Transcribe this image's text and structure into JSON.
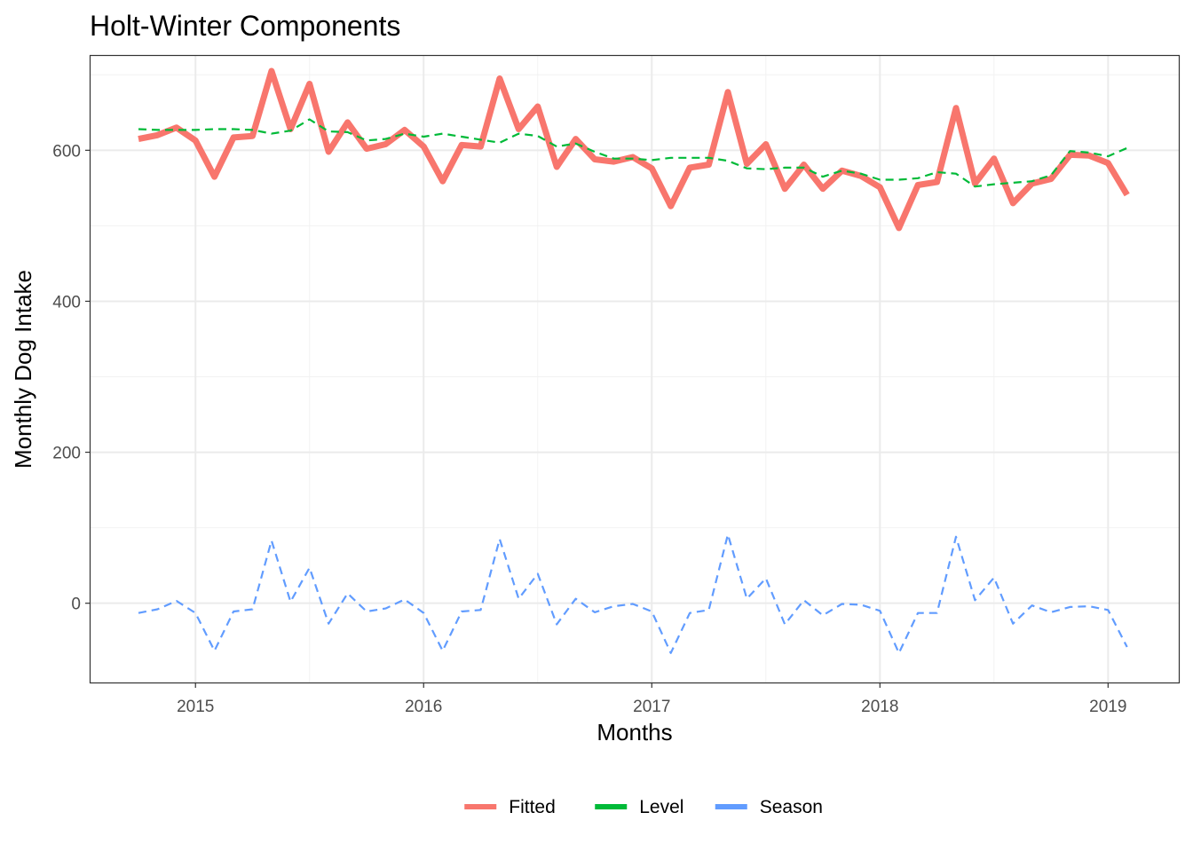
{
  "chart_data": {
    "type": "line",
    "title": "Holt-Winter Components",
    "xlabel": "Months",
    "ylabel": "Monthly Dog Intake",
    "x_start": 2014.75,
    "x_step": 0.0833333,
    "xlim": [
      2014.54,
      2019.31
    ],
    "ylim": [
      -105,
      725
    ],
    "x_ticks": [
      2015,
      2016,
      2017,
      2018,
      2019
    ],
    "y_ticks": [
      0,
      200,
      400,
      600
    ],
    "grid": true,
    "legend_position": "bottom",
    "series": [
      {
        "name": "Fitted",
        "color": "#F8766D",
        "dash": "solid",
        "width": "thick",
        "values": [
          615,
          620,
          630,
          613,
          565,
          617,
          619,
          705,
          628,
          688,
          598,
          637,
          602,
          608,
          627,
          605,
          559,
          607,
          605,
          695,
          628,
          658,
          578,
          615,
          588,
          585,
          591,
          576,
          526,
          577,
          581,
          677,
          582,
          608,
          549,
          581,
          549,
          573,
          566,
          551,
          497,
          554,
          558,
          656,
          556,
          589,
          530,
          556,
          562,
          594,
          593,
          583,
          541
        ]
      },
      {
        "name": "Level",
        "color": "#00BA38",
        "dash": "dashed",
        "width": "thin",
        "values": [
          628,
          627,
          627,
          627,
          628,
          628,
          627,
          622,
          626,
          641,
          625,
          624,
          613,
          615,
          622,
          618,
          622,
          618,
          614,
          610,
          622,
          619,
          605,
          609,
          598,
          589,
          589,
          587,
          590,
          590,
          590,
          586,
          576,
          575,
          577,
          577,
          565,
          573,
          569,
          561,
          561,
          563,
          571,
          569,
          552,
          555,
          557,
          559,
          567,
          599,
          597,
          592,
          603
        ]
      },
      {
        "name": "Season",
        "color": "#619CFF",
        "dash": "dashed",
        "width": "thin",
        "values": [
          -13,
          -8,
          3,
          -13,
          -63,
          -11,
          -8,
          83,
          2,
          47,
          -27,
          13,
          -11,
          -7,
          5,
          -13,
          -63,
          -11,
          -9,
          85,
          6,
          39,
          -28,
          6,
          -12,
          -4,
          -1,
          -11,
          -66,
          -13,
          -9,
          91,
          6,
          33,
          -28,
          4,
          -16,
          -1,
          -2,
          -10,
          -66,
          -13,
          -13,
          88,
          4,
          34,
          -27,
          -3,
          -12,
          -5,
          -4,
          -9,
          -58
        ]
      }
    ]
  }
}
